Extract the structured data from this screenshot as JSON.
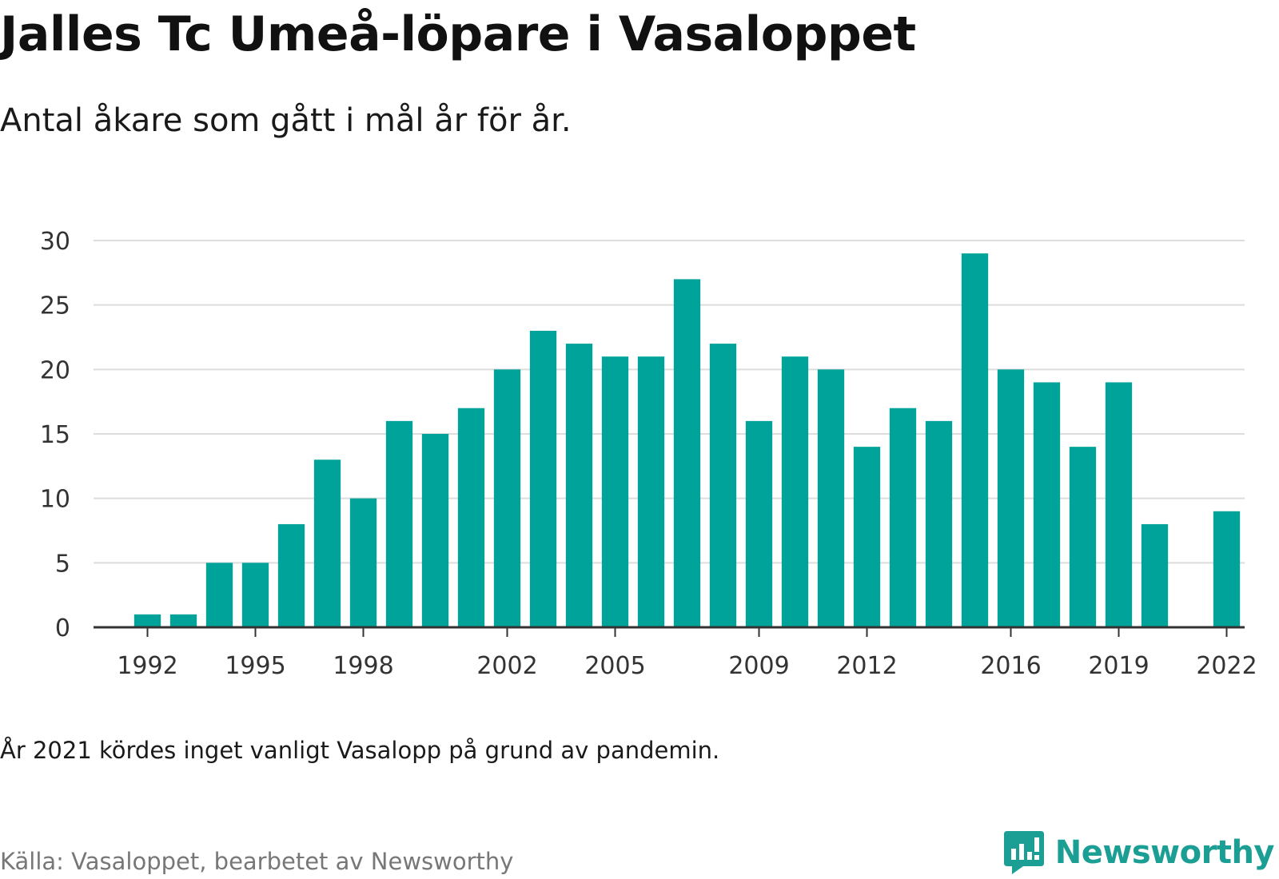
{
  "header": {
    "title": "Jalles Tc Umeå-löpare i Vasaloppet",
    "subtitle": "Antal åkare som gått i mål år för år."
  },
  "footer": {
    "note": "År 2021 kördes inget vanligt Vasalopp på grund av pandemin.",
    "source": "Källa: Vasaloppet, bearbetet av Newsworthy",
    "brand": "Newsworthy",
    "brand_icon": "newsworthy-logo-icon"
  },
  "colors": {
    "bar": "#00a39a",
    "grid": "#dddddd",
    "axis": "#333333",
    "brand": "#1b9e94"
  },
  "chart_data": {
    "type": "bar",
    "categories": [
      1991,
      1992,
      1993,
      1994,
      1995,
      1996,
      1997,
      1998,
      1999,
      2000,
      2001,
      2002,
      2003,
      2004,
      2005,
      2006,
      2007,
      2008,
      2009,
      2010,
      2011,
      2012,
      2013,
      2014,
      2015,
      2016,
      2017,
      2018,
      2019,
      2020,
      2021,
      2022
    ],
    "values": [
      0,
      1,
      1,
      5,
      5,
      8,
      13,
      10,
      16,
      15,
      17,
      20,
      23,
      22,
      21,
      21,
      27,
      22,
      16,
      21,
      20,
      14,
      17,
      16,
      29,
      20,
      19,
      14,
      19,
      8,
      0,
      9
    ],
    "x_tick_labels": [
      "1992",
      "1995",
      "1998",
      "2002",
      "2005",
      "2009",
      "2012",
      "2016",
      "2019",
      "2022"
    ],
    "y_ticks": [
      0,
      5,
      10,
      15,
      20,
      25,
      30
    ],
    "ylim": [
      0,
      30
    ],
    "grid": true,
    "legend": false
  }
}
